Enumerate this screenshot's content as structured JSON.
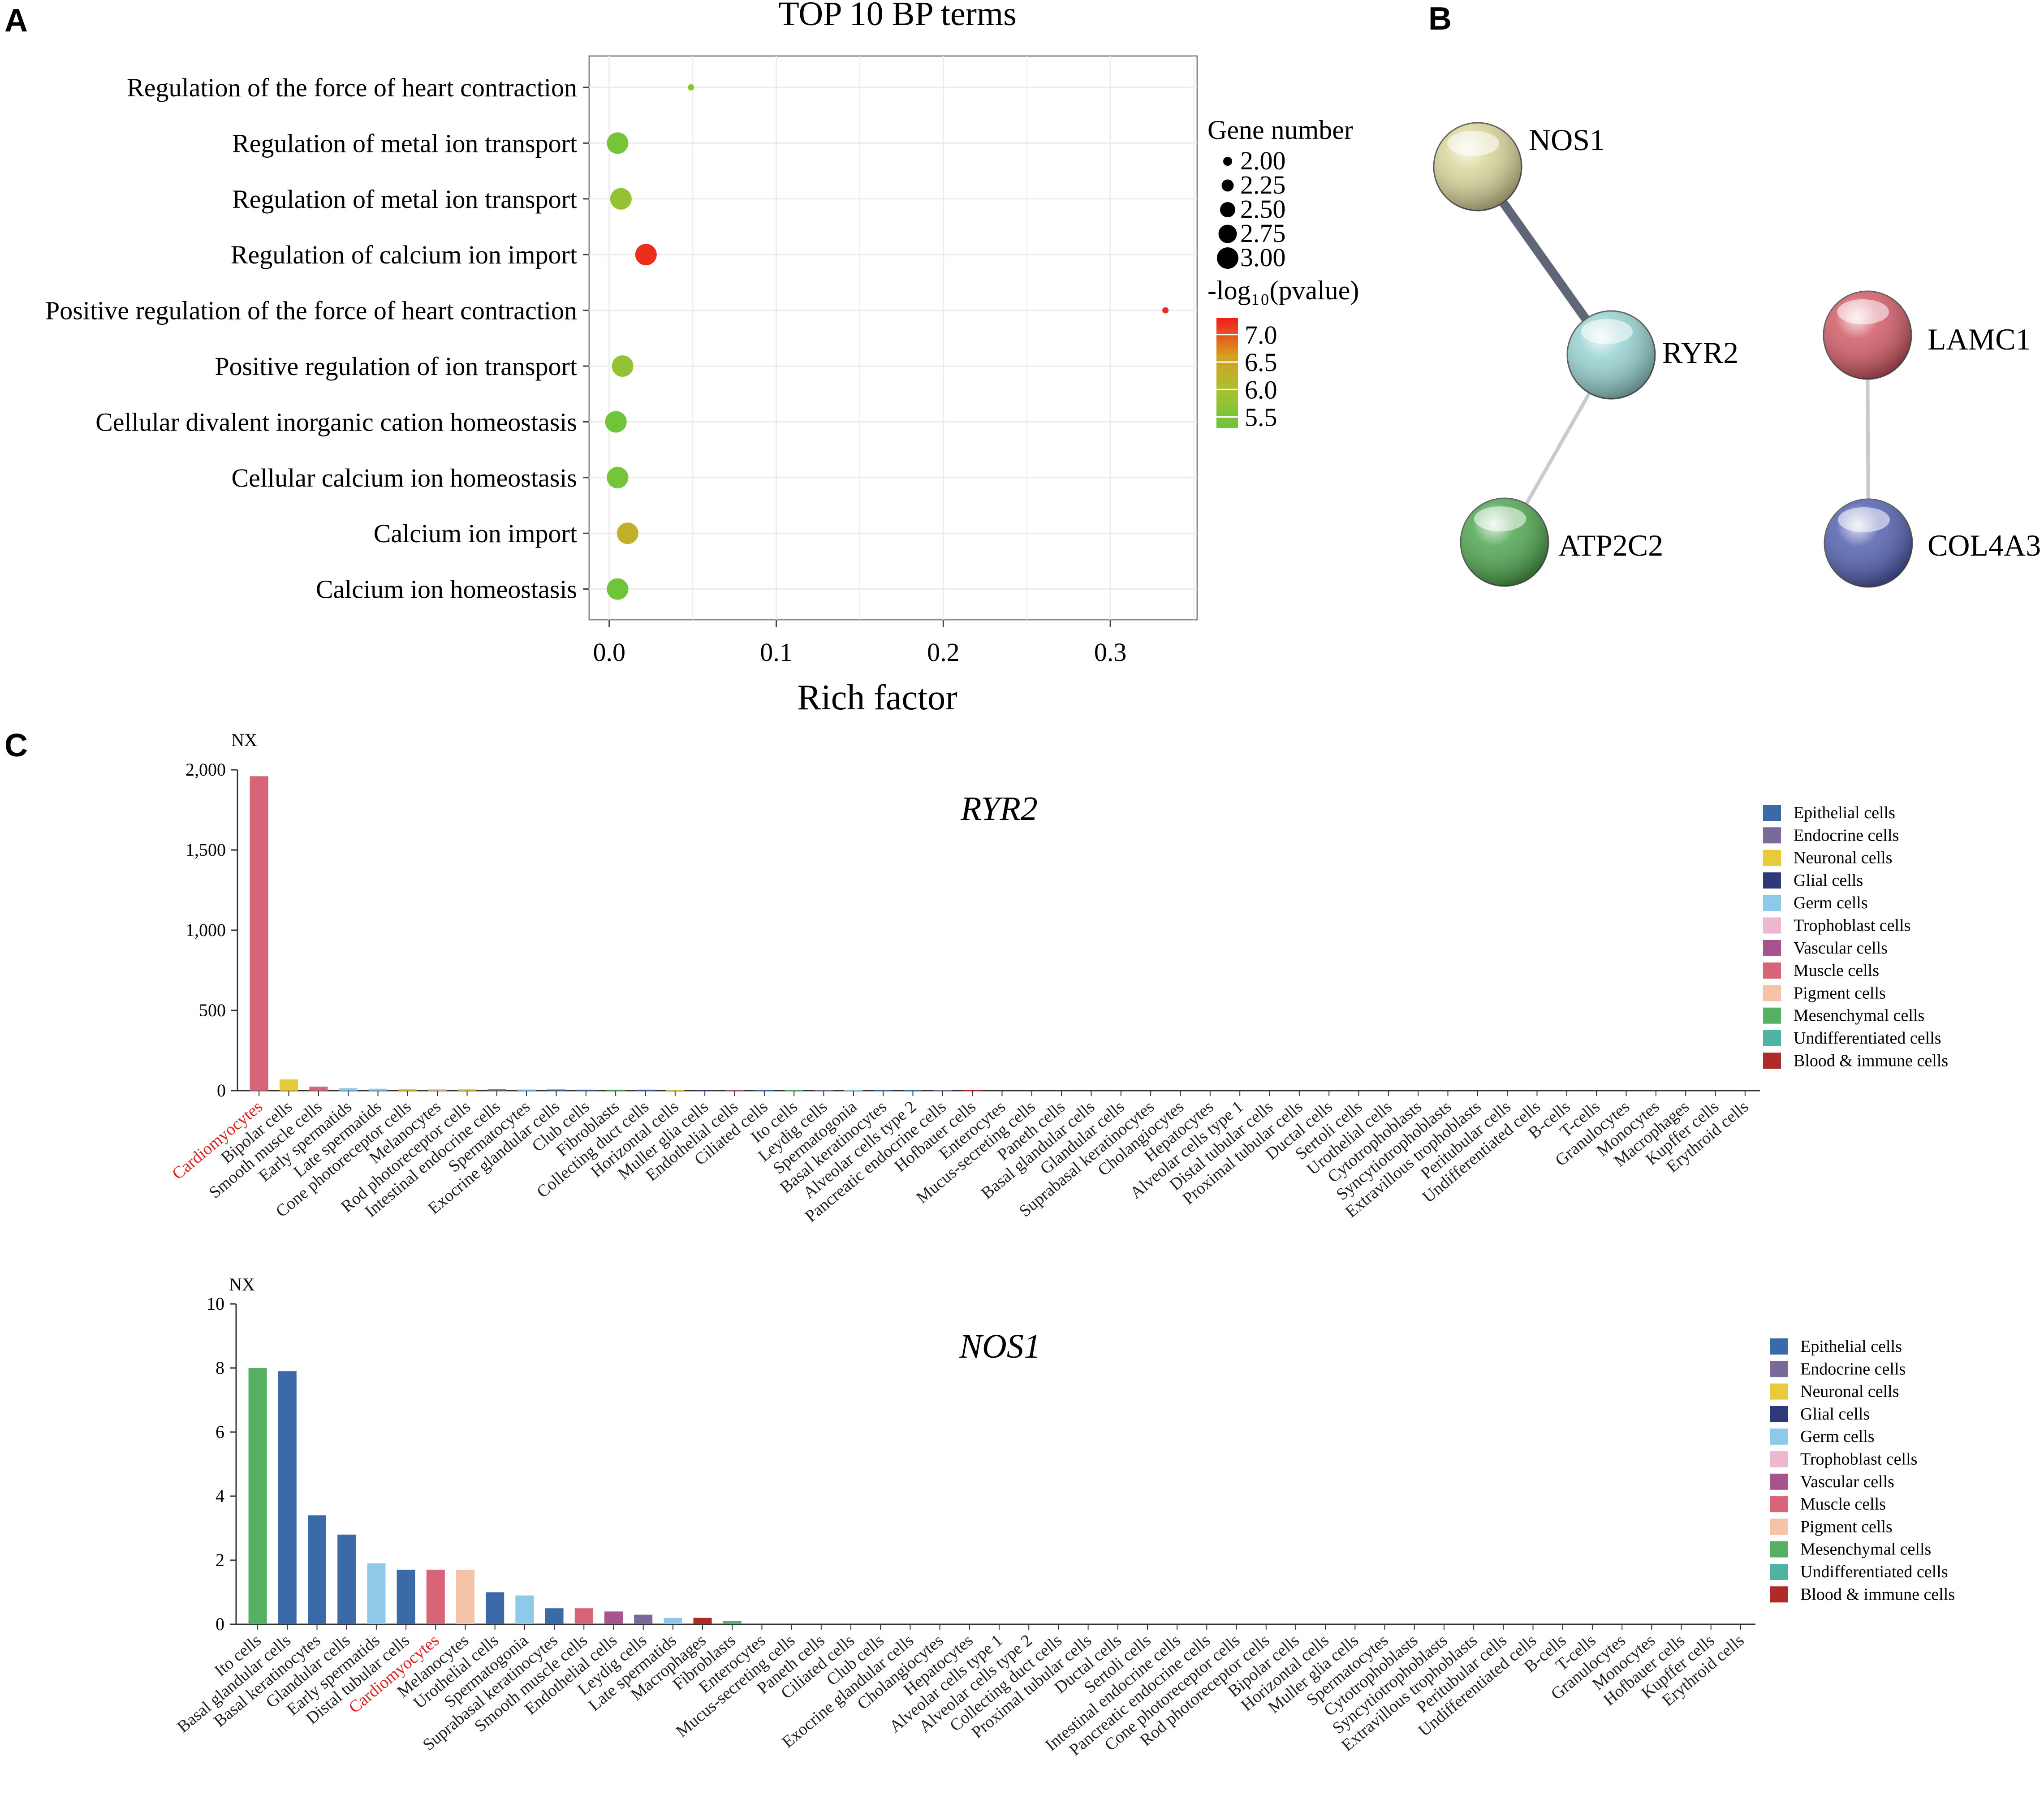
{
  "panel_labels": {
    "a": "A",
    "b": "B",
    "c": "C"
  },
  "colors": {
    "epithelial": "#3b6aa8",
    "endocrine": "#7a6a9c",
    "neuronal": "#e8cb3c",
    "glial": "#2e3a78",
    "germ": "#8ec9ea",
    "trophoblast": "#eeb6cf",
    "vascular": "#a6548e",
    "muscle": "#d86478",
    "pigment": "#f4c3a8",
    "mesenchymal": "#55b064",
    "undifferentiated": "#4fb3a4",
    "blood": "#b12a2a",
    "highlight_text": "#e02020"
  },
  "chart_data": [
    {
      "type": "scatter",
      "panel": "A",
      "title": "TOP 10 BP terms",
      "xlabel": "Rich factor",
      "ylabel": "",
      "xlim": [
        -0.012,
        0.352
      ],
      "xticks": [
        {
          "v": 0.0,
          "label": "0.0"
        },
        {
          "v": 0.1,
          "label": "0.1"
        },
        {
          "v": 0.2,
          "label": "0.2"
        },
        {
          "v": 0.3,
          "label": "0.3"
        }
      ],
      "terms": [
        "Regulation of the force of heart contraction",
        "Regulation of metal ion transport",
        "Regulation of metal ion transport",
        "Regulation of calcium ion import",
        "Positive regulation of the force of heart contraction",
        "Positive regulation of ion transport",
        "Cellular divalent inorganic cation homeostasis",
        "Cellular calcium ion homeostasis",
        "Calcium ion import",
        "Calcium ion homeostasis"
      ],
      "points": [
        {
          "term_index": 0,
          "rich_factor": 0.049,
          "gene_number": 1,
          "neg_log10_p": 5.7
        },
        {
          "term_index": 1,
          "rich_factor": 0.005,
          "gene_number": 3,
          "neg_log10_p": 5.4
        },
        {
          "term_index": 2,
          "rich_factor": 0.007,
          "gene_number": 3,
          "neg_log10_p": 5.75
        },
        {
          "term_index": 3,
          "rich_factor": 0.022,
          "gene_number": 3,
          "neg_log10_p": 7.2
        },
        {
          "term_index": 4,
          "rich_factor": 0.333,
          "gene_number": 1,
          "neg_log10_p": 7.2
        },
        {
          "term_index": 5,
          "rich_factor": 0.008,
          "gene_number": 3,
          "neg_log10_p": 5.75
        },
        {
          "term_index": 6,
          "rich_factor": 0.004,
          "gene_number": 3,
          "neg_log10_p": 5.35
        },
        {
          "term_index": 7,
          "rich_factor": 0.005,
          "gene_number": 3,
          "neg_log10_p": 5.4
        },
        {
          "term_index": 8,
          "rich_factor": 0.011,
          "gene_number": 3,
          "neg_log10_p": 6.3
        },
        {
          "term_index": 9,
          "rich_factor": 0.005,
          "gene_number": 3,
          "neg_log10_p": 5.35
        }
      ],
      "size_legend": {
        "title": "Gene number",
        "items": [
          {
            "v": 2.0,
            "label": "2.00"
          },
          {
            "v": 2.25,
            "label": "2.25"
          },
          {
            "v": 2.5,
            "label": "2.50"
          },
          {
            "v": 2.75,
            "label": "2.75"
          },
          {
            "v": 3.0,
            "label": "3.00"
          }
        ]
      },
      "color_legend": {
        "title": "-log₁₀(pvalue)",
        "range": [
          5.3,
          7.3
        ],
        "ticks": [
          {
            "v": 7.0,
            "label": "7.0"
          },
          {
            "v": 6.5,
            "label": "6.5"
          },
          {
            "v": 6.0,
            "label": "6.0"
          },
          {
            "v": 5.5,
            "label": "5.5"
          }
        ]
      }
    },
    {
      "type": "network",
      "panel": "B",
      "nodes": [
        {
          "id": "NOS1",
          "label": "NOS1",
          "color": "#d9d59a"
        },
        {
          "id": "RYR2",
          "label": "RYR2",
          "color": "#96d2d0"
        },
        {
          "id": "ATP2C2",
          "label": "ATP2C2",
          "color": "#4fa64f"
        },
        {
          "id": "LAMC1",
          "label": "LAMC1",
          "color": "#d25a66"
        },
        {
          "id": "COL4A3",
          "label": "COL4A3",
          "color": "#5360b0"
        }
      ],
      "edges": [
        {
          "from": "NOS1",
          "to": "RYR2",
          "strength": "strong",
          "color": "#5f6678"
        },
        {
          "from": "RYR2",
          "to": "ATP2C2",
          "strength": "weak",
          "color": "#c8cad2"
        },
        {
          "from": "LAMC1",
          "to": "COL4A3",
          "strength": "weak",
          "color": "#c8cad2"
        }
      ]
    },
    {
      "type": "bar",
      "panel": "C",
      "title": "RYR2",
      "ylabel": "NX",
      "ylim": [
        0,
        2000
      ],
      "yticks": [
        {
          "v": 0,
          "label": "0"
        },
        {
          "v": 500,
          "label": "500"
        },
        {
          "v": 1000,
          "label": "1,000"
        },
        {
          "v": 1500,
          "label": "1,500"
        },
        {
          "v": 2000,
          "label": "2,000"
        }
      ],
      "highlight": "Cardiomyocytes",
      "categories": [
        "Cardiomyocytes",
        "Bipolar cells",
        "Smooth muscle cells",
        "Early spermatids",
        "Late spermatids",
        "Cone photoreceptor cells",
        "Melanocytes",
        "Rod photoreceptor cells",
        "Intestinal endocrine cells",
        "Spermatocytes",
        "Exocrine glandular cells",
        "Club cells",
        "Fibroblasts",
        "Collecting duct cells",
        "Horizontal cells",
        "Muller glia cells",
        "Endothelial cells",
        "Ciliated cells",
        "Ito cells",
        "Leydig cells",
        "Spermatogonia",
        "Basal keratinocytes",
        "Alveolar cells type 2",
        "Pancreatic endocrine cells",
        "Hofbauer cells",
        "Enterocytes",
        "Mucus-secreting cells",
        "Paneth cells",
        "Basal glandular cells",
        "Glandular cells",
        "Suprabasal keratinocytes",
        "Cholangiocytes",
        "Hepatocytes",
        "Alveolar cells type 1",
        "Distal tubular cells",
        "Proximal tubular cells",
        "Ductal cells",
        "Sertoli cells",
        "Urothelial cells",
        "Cytotrophoblasts",
        "Syncytiotrophoblasts",
        "Extravillous trophoblasts",
        "Peritubular cells",
        "Undifferentiated cells",
        "B-cells",
        "T-cells",
        "Granulocytes",
        "Monocytes",
        "Macrophages",
        "Kupffer cells",
        "Erythroid cells"
      ],
      "values": [
        1960,
        70,
        25,
        15,
        12,
        10,
        9,
        8,
        8,
        7,
        7,
        6,
        6,
        6,
        5,
        5,
        5,
        4,
        4,
        4,
        4,
        4,
        4,
        3,
        3,
        0,
        0,
        0,
        0,
        0,
        0,
        0,
        0,
        0,
        0,
        0,
        0,
        0,
        0,
        0,
        0,
        0,
        0,
        0,
        0,
        0,
        0,
        0,
        0,
        0,
        0
      ],
      "groups": [
        "muscle",
        "neuronal",
        "muscle",
        "germ",
        "germ",
        "neuronal",
        "pigment",
        "neuronal",
        "endocrine",
        "germ",
        "epithelial",
        "epithelial",
        "mesenchymal",
        "epithelial",
        "neuronal",
        "glial",
        "vascular",
        "epithelial",
        "mesenchymal",
        "endocrine",
        "germ",
        "epithelial",
        "epithelial",
        "endocrine",
        "blood",
        "epithelial",
        "epithelial",
        "epithelial",
        "epithelial",
        "epithelial",
        "epithelial",
        "epithelial",
        "epithelial",
        "epithelial",
        "epithelial",
        "epithelial",
        "epithelial",
        "epithelial",
        "epithelial",
        "trophoblast",
        "trophoblast",
        "trophoblast",
        "mesenchymal",
        "undifferentiated",
        "blood",
        "blood",
        "blood",
        "blood",
        "blood",
        "blood",
        "blood"
      ],
      "legend": [
        "Epithelial cells",
        "Endocrine cells",
        "Neuronal cells",
        "Glial cells",
        "Germ cells",
        "Trophoblast cells",
        "Vascular cells",
        "Muscle cells",
        "Pigment cells",
        "Mesenchymal cells",
        "Undifferentiated cells",
        "Blood & immune cells"
      ],
      "legend_groups": [
        "epithelial",
        "endocrine",
        "neuronal",
        "glial",
        "germ",
        "trophoblast",
        "vascular",
        "muscle",
        "pigment",
        "mesenchymal",
        "undifferentiated",
        "blood"
      ]
    },
    {
      "type": "bar",
      "panel": "C",
      "title": "NOS1",
      "ylabel": "NX",
      "ylim": [
        0,
        10
      ],
      "yticks": [
        {
          "v": 0,
          "label": "0"
        },
        {
          "v": 2,
          "label": "2"
        },
        {
          "v": 4,
          "label": "4"
        },
        {
          "v": 6,
          "label": "6"
        },
        {
          "v": 8,
          "label": "8"
        },
        {
          "v": 10,
          "label": "10"
        }
      ],
      "highlight": "Cardiomyocytes",
      "categories": [
        "Ito cells",
        "Basal glandular cells",
        "Basal keratinocytes",
        "Glandular cells",
        "Early spermatids",
        "Distal tubular cells",
        "Cardiomyocytes",
        "Melanocytes",
        "Urothelial cells",
        "Spermatogonia",
        "Suprabasal keratinocytes",
        "Smooth muscle cells",
        "Endothelial cells",
        "Leydig cells",
        "Late spermatids",
        "Macrophages",
        "Fibroblasts",
        "Enterocytes",
        "Mucus-secreting cells",
        "Paneth cells",
        "Ciliated cells",
        "Club cells",
        "Exocrine glandular cells",
        "Cholangiocytes",
        "Hepatocytes",
        "Alveolar cells type 1",
        "Alveolar cells type 2",
        "Collecting duct cells",
        "Proximal tubular cells",
        "Ductal cells",
        "Sertoli cells",
        "Intestinal endocrine cells",
        "Pancreatic endocrine cells",
        "Cone photoreceptor cells",
        "Rod photoreceptor cells",
        "Bipolar cells",
        "Horizontal cells",
        "Muller glia cells",
        "Spermatocytes",
        "Cytotrophoblasts",
        "Syncytiotrophoblasts",
        "Extravillous trophoblasts",
        "Peritubular cells",
        "Undifferentiated cells",
        "B-cells",
        "T-cells",
        "Granulocytes",
        "Monocytes",
        "Hofbauer cells",
        "Kupffer cells",
        "Erythroid cells"
      ],
      "values": [
        8.0,
        7.9,
        3.4,
        2.8,
        1.9,
        1.7,
        1.7,
        1.7,
        1.0,
        0.9,
        0.5,
        0.5,
        0.4,
        0.3,
        0.2,
        0.2,
        0.1,
        0,
        0,
        0,
        0,
        0,
        0,
        0,
        0,
        0,
        0,
        0,
        0,
        0,
        0,
        0,
        0,
        0,
        0,
        0,
        0,
        0,
        0,
        0,
        0,
        0,
        0,
        0,
        0,
        0,
        0,
        0,
        0,
        0,
        0
      ],
      "groups": [
        "mesenchymal",
        "epithelial",
        "epithelial",
        "epithelial",
        "germ",
        "epithelial",
        "muscle",
        "pigment",
        "epithelial",
        "germ",
        "epithelial",
        "muscle",
        "vascular",
        "endocrine",
        "germ",
        "blood",
        "mesenchymal",
        "epithelial",
        "epithelial",
        "epithelial",
        "epithelial",
        "epithelial",
        "epithelial",
        "epithelial",
        "epithelial",
        "epithelial",
        "epithelial",
        "epithelial",
        "epithelial",
        "epithelial",
        "epithelial",
        "endocrine",
        "endocrine",
        "neuronal",
        "neuronal",
        "neuronal",
        "neuronal",
        "glial",
        "germ",
        "trophoblast",
        "trophoblast",
        "trophoblast",
        "mesenchymal",
        "undifferentiated",
        "blood",
        "blood",
        "blood",
        "blood",
        "blood",
        "blood",
        "blood"
      ],
      "legend": [
        "Epithelial cells",
        "Endocrine cells",
        "Neuronal cells",
        "Glial cells",
        "Germ cells",
        "Trophoblast cells",
        "Vascular cells",
        "Muscle cells",
        "Pigment cells",
        "Mesenchymal cells",
        "Undifferentiated cells",
        "Blood & immune cells"
      ],
      "legend_groups": [
        "epithelial",
        "endocrine",
        "neuronal",
        "glial",
        "germ",
        "trophoblast",
        "vascular",
        "muscle",
        "pigment",
        "mesenchymal",
        "undifferentiated",
        "blood"
      ]
    }
  ]
}
